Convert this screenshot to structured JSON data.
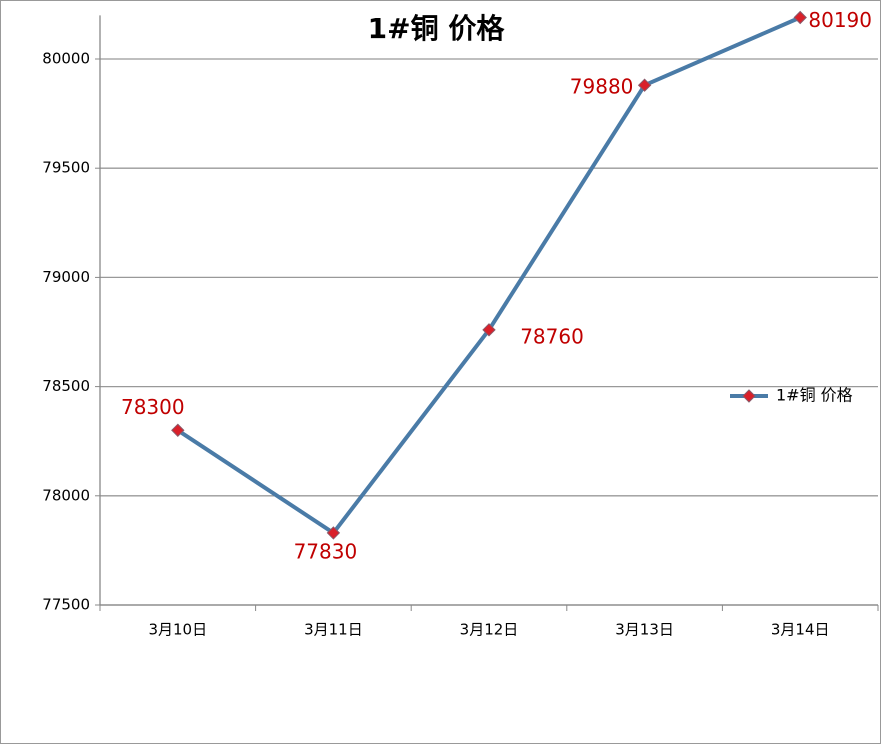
{
  "chart_data": {
    "type": "line",
    "title": "1#铜 价格",
    "categories": [
      "3月10日",
      "3月11日",
      "3月12日",
      "3月13日",
      "3月14日"
    ],
    "series": [
      {
        "name": "1#铜 价格",
        "color": "#4a7ba7",
        "marker_color": "#d9202a",
        "label_color": "#c00000",
        "values": [
          78300,
          77830,
          78760,
          79880,
          80190
        ]
      }
    ],
    "ylim": [
      77500,
      80200
    ],
    "yticks": [
      77500,
      78000,
      78500,
      79000,
      79500,
      80000
    ],
    "grid": true,
    "legend": "right"
  }
}
